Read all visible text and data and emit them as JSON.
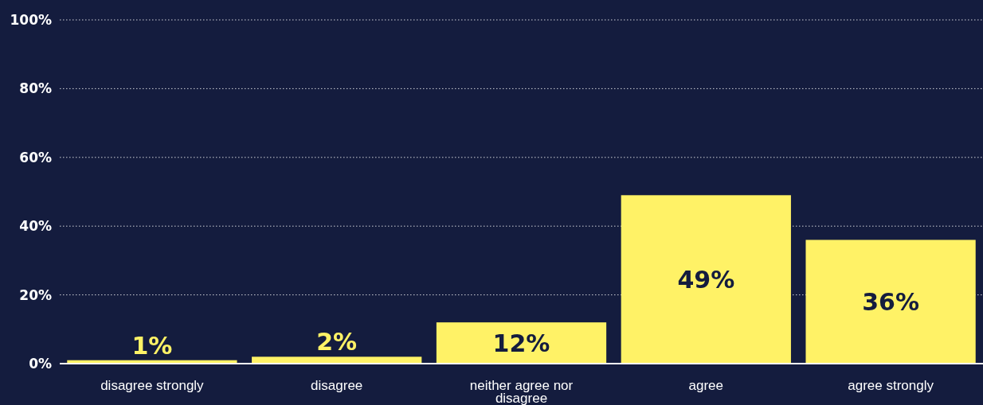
{
  "chart_data": {
    "type": "bar",
    "categories": [
      "disagree strongly",
      "disagree",
      "neither agree nor disagree",
      "agree",
      "agree strongly"
    ],
    "values": [
      1,
      2,
      12,
      49,
      36
    ],
    "color": "#fff266",
    "ylim": [
      0,
      100
    ],
    "yticks": [
      {
        "value": 0,
        "label": "0%"
      },
      {
        "value": 20,
        "label": "20%"
      },
      {
        "value": 40,
        "label": "40%"
      },
      {
        "value": 60,
        "label": "60%"
      },
      {
        "value": 80,
        "label": "80%"
      },
      {
        "value": 100,
        "label": "100%"
      }
    ],
    "grid": "y",
    "value_labels": [
      "1%",
      "2%",
      "12%",
      "49%",
      "36%"
    ]
  }
}
